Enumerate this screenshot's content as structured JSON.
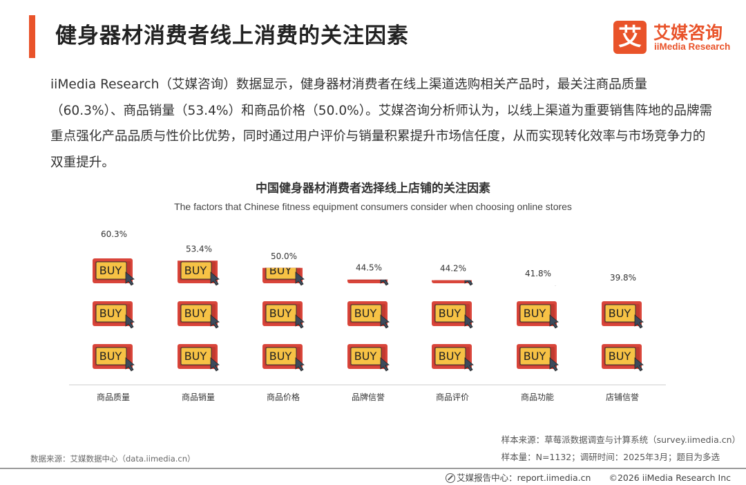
{
  "header": {
    "title": "健身器材消费者线上消费的关注因素",
    "logo_icon_text": "艾",
    "logo_cn": "艾媒咨询",
    "logo_en": "iiMedia Research"
  },
  "intro": "iiMedia Research（艾媒咨询）数据显示，健身器材消费者在线上渠道选购相关产品时，最关注商品质量（60.3%）、商品销量（53.4%）和商品价格（50.0%）。艾媒咨询分析师认为，以线上渠道为重要销售阵地的品牌需重点强化产品品质与性价比优势，同时通过用户评价与销量积累提升市场信任度，从而实现转化效率与市场竞争力的双重提升。",
  "chart_data": {
    "type": "bar",
    "title": "中国健身器材消费者选择线上店铺的关注因素",
    "subtitle": "The factors that Chinese fitness equipment consumers consider when choosing online stores",
    "categories": [
      "商品质量",
      "商品销量",
      "商品价格",
      "品牌信誉",
      "商品评价",
      "商品功能",
      "店铺信誉"
    ],
    "values": [
      60.3,
      53.4,
      50.0,
      44.5,
      44.2,
      41.8,
      39.8
    ],
    "value_labels": [
      "60.3%",
      "53.4%",
      "50.0%",
      "44.5%",
      "44.2%",
      "41.8%",
      "39.8%"
    ],
    "icon_text": "BUY",
    "icon_name": "buy-sign-icon",
    "ylim": [
      0,
      60.3
    ],
    "grid": false,
    "colors": {
      "frame": "#d9453a",
      "sign": "#f7c245",
      "text": "#333333",
      "cursor": "#3c4a5c"
    }
  },
  "footer": {
    "sample_source": "样本来源：草莓派数据调查与计算系统（survey.iimedia.cn）",
    "sample_size": "样本量：N=1132；调研时间：2025年3月；题目为多选",
    "data_source": "数据来源：艾媒数据中心（data.iimedia.cn）",
    "report_center": "艾媒报告中心：report.iimedia.cn",
    "copyright": "©2026  iiMedia Research  Inc"
  }
}
